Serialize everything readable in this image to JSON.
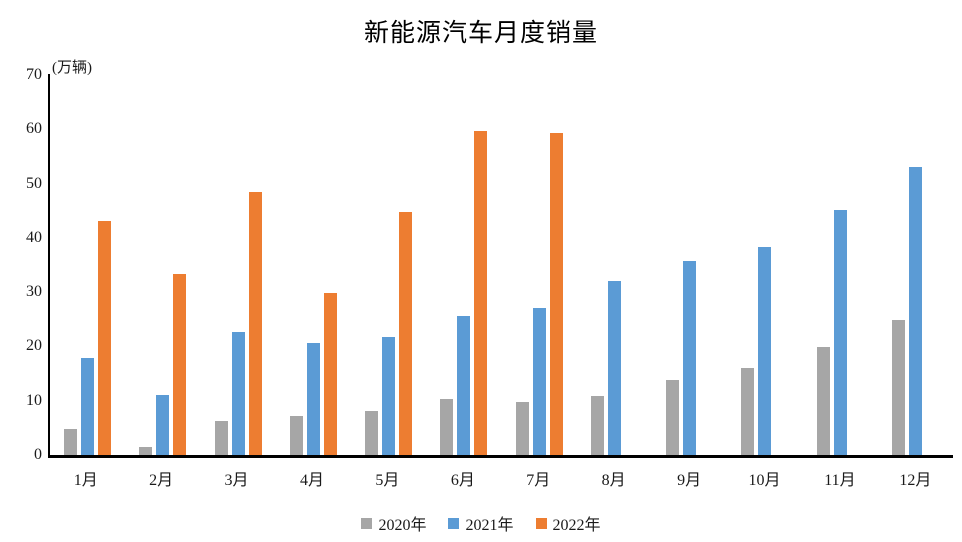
{
  "chart_data": {
    "type": "bar",
    "title": "新能源汽车月度销量",
    "ylabel": "(万辆)",
    "xlabel": "",
    "categories": [
      "1月",
      "2月",
      "3月",
      "4月",
      "5月",
      "6月",
      "7月",
      "8月",
      "9月",
      "10月",
      "11月",
      "12月"
    ],
    "series": [
      {
        "name": "2020年",
        "color": "#A6A6A6",
        "values": [
          4.8,
          1.4,
          6.2,
          7.1,
          8.1,
          10.3,
          9.8,
          10.9,
          13.9,
          16.0,
          19.9,
          24.8
        ]
      },
      {
        "name": "2021年",
        "color": "#5B9BD5",
        "values": [
          17.9,
          11.0,
          22.6,
          20.6,
          21.7,
          25.6,
          27.1,
          32.1,
          35.7,
          38.3,
          45.1,
          53.1
        ]
      },
      {
        "name": "2022年",
        "color": "#ED7D31",
        "values": [
          43.1,
          33.4,
          48.4,
          29.9,
          44.7,
          59.6,
          59.3,
          null,
          null,
          null,
          null,
          null
        ]
      }
    ],
    "ylim": [
      0,
      70
    ],
    "yticks": [
      0,
      10,
      20,
      30,
      40,
      50,
      60,
      70
    ],
    "grid": false,
    "legend_position": "bottom",
    "axis_color": "#000000",
    "background_color": "#ffffff"
  }
}
